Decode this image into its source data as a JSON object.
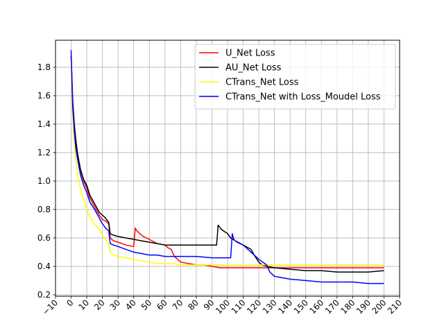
{
  "chart_data": {
    "type": "line",
    "title": "",
    "xlabel": "",
    "ylabel": "",
    "xlim": [
      -10,
      210
    ],
    "ylim": [
      0.19,
      1.99
    ],
    "x_ticks": [
      -10,
      0,
      10,
      20,
      30,
      40,
      50,
      60,
      70,
      80,
      90,
      100,
      110,
      120,
      130,
      140,
      150,
      160,
      170,
      180,
      190,
      200,
      210
    ],
    "y_ticks": [
      0.2,
      0.4,
      0.6,
      0.8,
      1.0,
      1.2,
      1.4,
      1.6,
      1.8
    ],
    "x_tick_labels": [
      "−10",
      "0",
      "10",
      "20",
      "30",
      "40",
      "50",
      "60",
      "70",
      "80",
      "90",
      "100",
      "110",
      "120",
      "130",
      "140",
      "150",
      "160",
      "170",
      "180",
      "190",
      "200",
      "210"
    ],
    "y_tick_labels": [
      "0.2",
      "0.4",
      "0.6",
      "0.8",
      "1.0",
      "1.2",
      "1.4",
      "1.6",
      "1.8"
    ],
    "grid": true,
    "legend_position": "top-right",
    "series": [
      {
        "name": "U_Net Loss",
        "color": "#ff0000",
        "x": [
          0,
          1,
          2,
          3,
          4,
          5,
          6,
          8,
          10,
          12,
          15,
          18,
          20,
          22,
          24,
          25,
          27,
          30,
          35,
          40,
          41,
          42,
          44,
          46,
          50,
          55,
          60,
          62,
          64,
          66,
          70,
          75,
          80,
          85,
          90,
          95,
          100,
          105,
          110,
          115,
          120,
          125,
          130,
          140,
          150,
          160,
          170,
          180,
          190,
          200
        ],
        "y": [
          1.88,
          1.55,
          1.38,
          1.27,
          1.18,
          1.12,
          1.07,
          1.0,
          0.95,
          0.88,
          0.82,
          0.76,
          0.73,
          0.72,
          0.7,
          0.6,
          0.58,
          0.57,
          0.55,
          0.54,
          0.67,
          0.65,
          0.63,
          0.61,
          0.59,
          0.56,
          0.55,
          0.53,
          0.52,
          0.47,
          0.43,
          0.42,
          0.41,
          0.41,
          0.4,
          0.39,
          0.39,
          0.39,
          0.39,
          0.39,
          0.39,
          0.39,
          0.39,
          0.39,
          0.39,
          0.39,
          0.39,
          0.39,
          0.39,
          0.39
        ]
      },
      {
        "name": "AU_Net Loss",
        "color": "#000000",
        "x": [
          0,
          1,
          2,
          3,
          4,
          5,
          6,
          8,
          10,
          12,
          15,
          18,
          20,
          22,
          24,
          25,
          27,
          30,
          35,
          40,
          45,
          50,
          55,
          60,
          65,
          70,
          75,
          80,
          85,
          90,
          93,
          94,
          96,
          100,
          102,
          105,
          110,
          115,
          117,
          120,
          122,
          125,
          130,
          140,
          150,
          160,
          170,
          180,
          190,
          200
        ],
        "y": [
          1.88,
          1.57,
          1.4,
          1.29,
          1.2,
          1.14,
          1.08,
          1.01,
          0.97,
          0.9,
          0.84,
          0.78,
          0.76,
          0.74,
          0.71,
          0.63,
          0.62,
          0.61,
          0.6,
          0.59,
          0.58,
          0.57,
          0.56,
          0.55,
          0.55,
          0.55,
          0.55,
          0.55,
          0.55,
          0.55,
          0.55,
          0.69,
          0.66,
          0.63,
          0.6,
          0.58,
          0.55,
          0.52,
          0.48,
          0.43,
          0.41,
          0.4,
          0.39,
          0.38,
          0.37,
          0.37,
          0.36,
          0.36,
          0.36,
          0.37
        ]
      },
      {
        "name": "CTrans_Net Loss",
        "color": "#ffff00",
        "x": [
          0,
          1,
          2,
          3,
          4,
          5,
          6,
          8,
          10,
          12,
          15,
          18,
          20,
          22,
          24,
          25,
          27,
          30,
          35,
          40,
          45,
          50,
          55,
          60,
          65,
          70,
          80,
          90,
          100,
          110,
          120,
          130,
          140,
          150,
          160,
          170,
          180,
          190,
          200
        ],
        "y": [
          1.85,
          1.45,
          1.28,
          1.15,
          1.06,
          1.0,
          0.94,
          0.87,
          0.8,
          0.75,
          0.7,
          0.66,
          0.62,
          0.59,
          0.56,
          0.5,
          0.48,
          0.47,
          0.46,
          0.45,
          0.44,
          0.43,
          0.42,
          0.42,
          0.42,
          0.41,
          0.41,
          0.41,
          0.41,
          0.41,
          0.41,
          0.41,
          0.41,
          0.41,
          0.41,
          0.41,
          0.41,
          0.41,
          0.41
        ]
      },
      {
        "name": "CTrans_Net with Loss_Moudel Loss",
        "color": "#0000ff",
        "x": [
          0,
          1,
          2,
          3,
          4,
          5,
          6,
          8,
          10,
          12,
          15,
          18,
          20,
          22,
          24,
          25,
          27,
          30,
          35,
          40,
          45,
          50,
          55,
          60,
          65,
          70,
          80,
          90,
          100,
          102,
          103,
          104,
          106,
          110,
          115,
          120,
          125,
          127,
          130,
          135,
          140,
          150,
          160,
          170,
          180,
          190,
          200
        ],
        "y": [
          1.92,
          1.52,
          1.35,
          1.23,
          1.16,
          1.1,
          1.04,
          0.97,
          0.92,
          0.85,
          0.8,
          0.74,
          0.7,
          0.67,
          0.65,
          0.56,
          0.55,
          0.54,
          0.52,
          0.5,
          0.49,
          0.48,
          0.48,
          0.47,
          0.47,
          0.47,
          0.47,
          0.46,
          0.46,
          0.46,
          0.63,
          0.59,
          0.57,
          0.55,
          0.5,
          0.45,
          0.41,
          0.36,
          0.33,
          0.32,
          0.31,
          0.3,
          0.29,
          0.29,
          0.29,
          0.28,
          0.28
        ]
      }
    ]
  }
}
